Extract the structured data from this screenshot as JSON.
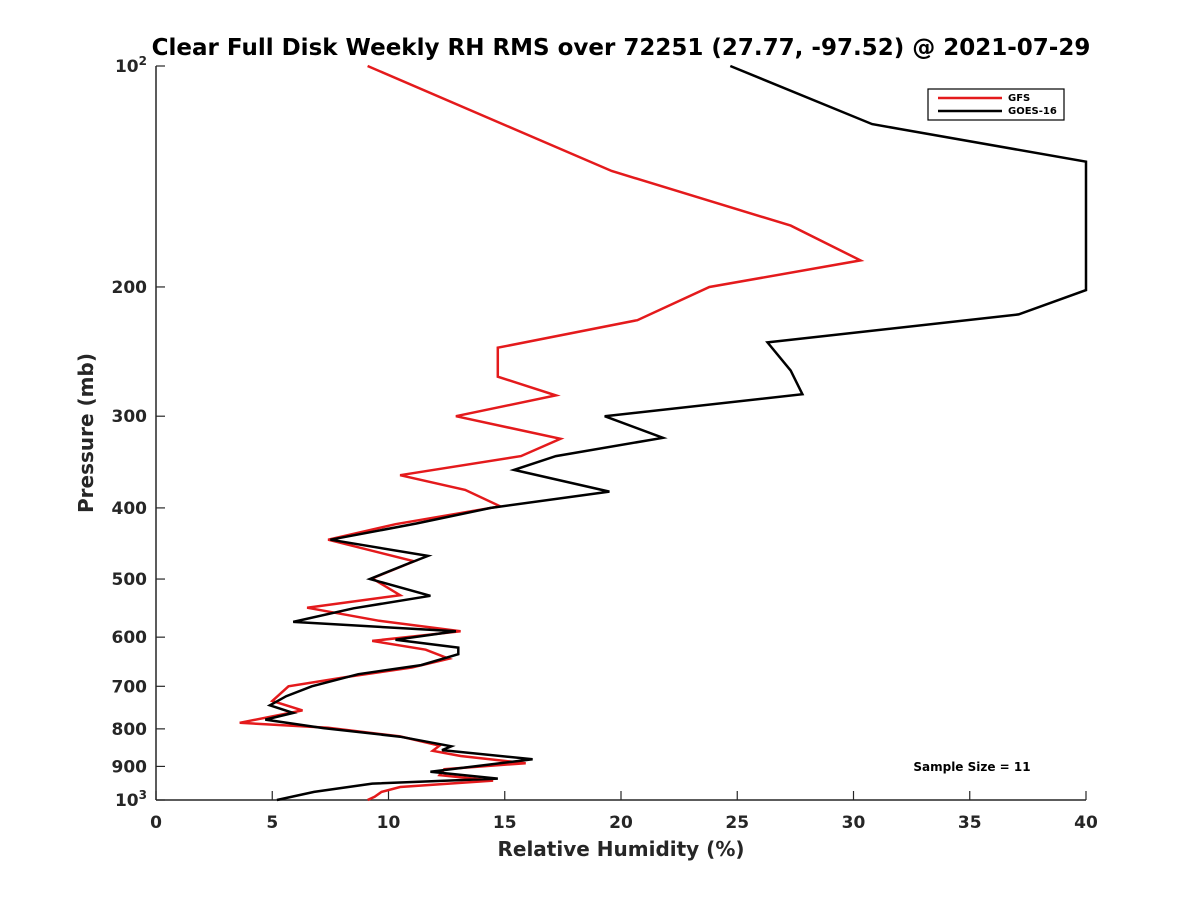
{
  "chart_data": {
    "type": "line",
    "title": "Clear Full Disk Weekly RH RMS over 72251 (27.77, -97.52) @ 2021-07-29",
    "xlabel": "Relative Humidity (%)",
    "ylabel": "Pressure (mb)",
    "xlim": [
      0,
      40
    ],
    "ylim": [
      100,
      1000
    ],
    "yscale": "log",
    "y_reversed": true,
    "x_ticks": [
      "0",
      "5",
      "10",
      "15",
      "20",
      "25",
      "30",
      "35",
      "40"
    ],
    "y_ticks": [
      {
        "value": 100,
        "base": "10",
        "exp": "2"
      },
      {
        "value": 200,
        "label": "200"
      },
      {
        "value": 300,
        "label": "300"
      },
      {
        "value": 400,
        "label": "400"
      },
      {
        "value": 500,
        "label": "500"
      },
      {
        "value": 600,
        "label": "600"
      },
      {
        "value": 700,
        "label": "700"
      },
      {
        "value": 800,
        "label": "800"
      },
      {
        "value": 900,
        "label": "900"
      },
      {
        "value": 1000,
        "base": "10",
        "exp": "3"
      }
    ],
    "legend_position": "top-right",
    "annotation": "Sample Size = 11",
    "series": [
      {
        "name": "GFS",
        "color": "#e41a1c",
        "points": [
          [
            9.1,
            100
          ],
          [
            19.6,
            139
          ],
          [
            27.3,
            165
          ],
          [
            30.3,
            184
          ],
          [
            23.8,
            200
          ],
          [
            20.7,
            222
          ],
          [
            14.7,
            242
          ],
          [
            14.7,
            265
          ],
          [
            17.2,
            281
          ],
          [
            12.9,
            300
          ],
          [
            17.4,
            322
          ],
          [
            15.7,
            340
          ],
          [
            10.5,
            361
          ],
          [
            13.3,
            378
          ],
          [
            14.8,
            398
          ],
          [
            10.3,
            421
          ],
          [
            7.4,
            442
          ],
          [
            11.1,
            473
          ],
          [
            9.3,
            499
          ],
          [
            10.5,
            526
          ],
          [
            6.5,
            547
          ],
          [
            9.6,
            570
          ],
          [
            13.1,
            589
          ],
          [
            9.3,
            607
          ],
          [
            11.6,
            624
          ],
          [
            12.6,
            642
          ],
          [
            11.0,
            660
          ],
          [
            8.3,
            679
          ],
          [
            5.7,
            700
          ],
          [
            5.0,
            733
          ],
          [
            6.3,
            755
          ],
          [
            3.6,
            785
          ],
          [
            7.4,
            797
          ],
          [
            10.5,
            819
          ],
          [
            12.2,
            843
          ],
          [
            11.9,
            857
          ],
          [
            13.1,
            871
          ],
          [
            15.9,
            891
          ],
          [
            12.4,
            908
          ],
          [
            12.2,
            925
          ],
          [
            14.5,
            941
          ],
          [
            10.5,
            960
          ],
          [
            9.7,
            975
          ],
          [
            9.4,
            990
          ],
          [
            9.1,
            1000
          ]
        ]
      },
      {
        "name": "GOES-16",
        "color": "#000000",
        "points": [
          [
            24.7,
            100
          ],
          [
            30.8,
            120
          ],
          [
            40.0,
            135
          ],
          [
            40.0,
            202
          ],
          [
            37.1,
            218
          ],
          [
            26.3,
            238
          ],
          [
            27.3,
            260
          ],
          [
            27.8,
            280
          ],
          [
            19.3,
            300
          ],
          [
            21.8,
            321
          ],
          [
            17.2,
            340
          ],
          [
            15.4,
            355
          ],
          [
            19.5,
            380
          ],
          [
            14.4,
            400
          ],
          [
            11.2,
            420
          ],
          [
            7.5,
            442
          ],
          [
            11.7,
            465
          ],
          [
            10.8,
            477
          ],
          [
            9.2,
            500
          ],
          [
            11.8,
            527
          ],
          [
            8.5,
            548
          ],
          [
            5.9,
            572
          ],
          [
            12.9,
            589
          ],
          [
            10.3,
            605
          ],
          [
            13.0,
            620
          ],
          [
            13.0,
            633
          ],
          [
            11.4,
            655
          ],
          [
            8.7,
            674
          ],
          [
            6.7,
            700
          ],
          [
            5.6,
            722
          ],
          [
            4.9,
            743
          ],
          [
            5.9,
            761
          ],
          [
            4.7,
            777
          ],
          [
            7.2,
            798
          ],
          [
            10.5,
            820
          ],
          [
            12.7,
            845
          ],
          [
            12.3,
            855
          ],
          [
            16.2,
            880
          ],
          [
            11.8,
            915
          ],
          [
            14.7,
            935
          ],
          [
            9.3,
            950
          ],
          [
            6.8,
            975
          ],
          [
            5.2,
            1000
          ]
        ]
      }
    ]
  }
}
